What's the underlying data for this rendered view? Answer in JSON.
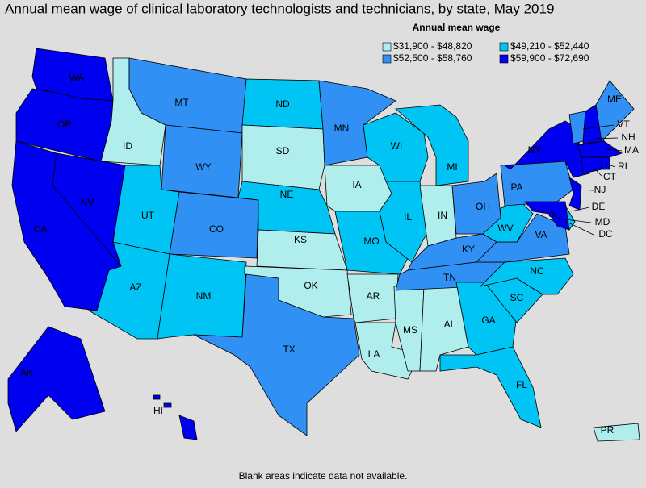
{
  "title": "Annual mean wage of clinical laboratory technologists and technicians, by state, May 2019",
  "legend": {
    "title": "Annual mean wage",
    "items": [
      {
        "label": "$31,900 - $48,820",
        "color": "#b0eeee"
      },
      {
        "label": "$49,210 - $52,440",
        "color": "#00c4f4"
      },
      {
        "label": "$52,500 - $58,760",
        "color": "#3090f4"
      },
      {
        "label": "$59,900 - $72,690",
        "color": "#0000f0"
      }
    ]
  },
  "states": [
    {
      "abbr": "WA",
      "class": 3
    },
    {
      "abbr": "OR",
      "class": 3
    },
    {
      "abbr": "CA",
      "class": 3
    },
    {
      "abbr": "NV",
      "class": 3
    },
    {
      "abbr": "ID",
      "class": 0
    },
    {
      "abbr": "MT",
      "class": 2
    },
    {
      "abbr": "WY",
      "class": 2
    },
    {
      "abbr": "UT",
      "class": 1
    },
    {
      "abbr": "CO",
      "class": 2
    },
    {
      "abbr": "AZ",
      "class": 1
    },
    {
      "abbr": "NM",
      "class": 1
    },
    {
      "abbr": "ND",
      "class": 1
    },
    {
      "abbr": "SD",
      "class": 0
    },
    {
      "abbr": "NE",
      "class": 1
    },
    {
      "abbr": "KS",
      "class": 0
    },
    {
      "abbr": "OK",
      "class": 0
    },
    {
      "abbr": "TX",
      "class": 2
    },
    {
      "abbr": "MN",
      "class": 2
    },
    {
      "abbr": "IA",
      "class": 0
    },
    {
      "abbr": "MO",
      "class": 1
    },
    {
      "abbr": "AR",
      "class": 0
    },
    {
      "abbr": "LA",
      "class": 0
    },
    {
      "abbr": "MS",
      "class": 0
    },
    {
      "abbr": "AL",
      "class": 0
    },
    {
      "abbr": "WI",
      "class": 1
    },
    {
      "abbr": "IL",
      "class": 1
    },
    {
      "abbr": "MI",
      "class": 1
    },
    {
      "abbr": "IN",
      "class": 0
    },
    {
      "abbr": "OH",
      "class": 2
    },
    {
      "abbr": "KY",
      "class": 2
    },
    {
      "abbr": "TN",
      "class": 2
    },
    {
      "abbr": "GA",
      "class": 1
    },
    {
      "abbr": "FL",
      "class": 1
    },
    {
      "abbr": "SC",
      "class": 1
    },
    {
      "abbr": "NC",
      "class": 1
    },
    {
      "abbr": "VA",
      "class": 2
    },
    {
      "abbr": "WV",
      "class": 1
    },
    {
      "abbr": "PA",
      "class": 2
    },
    {
      "abbr": "NY",
      "class": 3
    },
    {
      "abbr": "VT",
      "class": 2
    },
    {
      "abbr": "NH",
      "class": 3
    },
    {
      "abbr": "ME",
      "class": 2
    },
    {
      "abbr": "MA",
      "class": 3
    },
    {
      "abbr": "RI",
      "class": 3
    },
    {
      "abbr": "CT",
      "class": 3
    },
    {
      "abbr": "NJ",
      "class": 3
    },
    {
      "abbr": "DE",
      "class": 1
    },
    {
      "abbr": "MD",
      "class": 3
    },
    {
      "abbr": "DC",
      "class": 3
    },
    {
      "abbr": "AK",
      "class": 3
    },
    {
      "abbr": "HI",
      "class": 3
    },
    {
      "abbr": "PR",
      "class": 0
    }
  ],
  "note": "Blank areas indicate data not available."
}
